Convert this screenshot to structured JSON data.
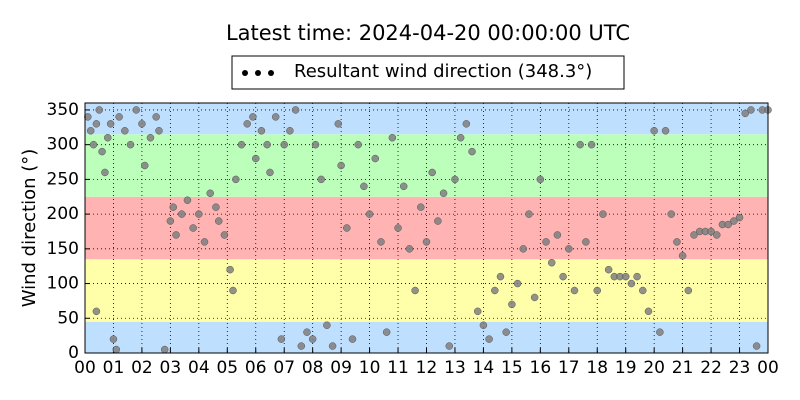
{
  "chart_data": {
    "type": "scatter",
    "title": "Latest time: 2024-04-20 00:00:00 UTC",
    "y_label": "Wind direction (°)",
    "xlim": [
      0,
      24
    ],
    "ylim": [
      0,
      360
    ],
    "xticks": [
      {
        "value": 0,
        "label": "00"
      },
      {
        "value": 1,
        "label": "01"
      },
      {
        "value": 2,
        "label": "02"
      },
      {
        "value": 3,
        "label": "03"
      },
      {
        "value": 4,
        "label": "04"
      },
      {
        "value": 5,
        "label": "05"
      },
      {
        "value": 6,
        "label": "06"
      },
      {
        "value": 7,
        "label": "07"
      },
      {
        "value": 8,
        "label": "08"
      },
      {
        "value": 9,
        "label": "09"
      },
      {
        "value": 10,
        "label": "10"
      },
      {
        "value": 11,
        "label": "11"
      },
      {
        "value": 12,
        "label": "12"
      },
      {
        "value": 13,
        "label": "13"
      },
      {
        "value": 14,
        "label": "14"
      },
      {
        "value": 15,
        "label": "15"
      },
      {
        "value": 16,
        "label": "16"
      },
      {
        "value": 17,
        "label": "17"
      },
      {
        "value": 18,
        "label": "18"
      },
      {
        "value": 19,
        "label": "19"
      },
      {
        "value": 20,
        "label": "20"
      },
      {
        "value": 21,
        "label": "21"
      },
      {
        "value": 22,
        "label": "22"
      },
      {
        "value": 23,
        "label": "23"
      },
      {
        "value": 24,
        "label": "00"
      }
    ],
    "yticks": [
      0,
      50,
      100,
      150,
      200,
      250,
      300,
      350
    ],
    "grid": true,
    "legend_position": "top",
    "legend_marker_color": "#000000",
    "bands": [
      {
        "from": 0,
        "to": 45,
        "color": "#bfdfff"
      },
      {
        "from": 45,
        "to": 135,
        "color": "#ffffaa"
      },
      {
        "from": 135,
        "to": 225,
        "color": "#ffb3b3"
      },
      {
        "from": 225,
        "to": 315,
        "color": "#bbffbb"
      },
      {
        "from": 315,
        "to": 360,
        "color": "#bfdfff"
      }
    ],
    "series": [
      {
        "name": "Resultant wind direction (348.3°)",
        "color": "#7f7f7f",
        "x": [
          0.1,
          0.2,
          0.3,
          0.4,
          0.5,
          0.6,
          0.7,
          0.8,
          0.9,
          1.0,
          1.1,
          0.4,
          1.2,
          1.4,
          1.6,
          1.8,
          2.0,
          2.1,
          2.3,
          2.5,
          2.6,
          2.8,
          3.0,
          3.1,
          3.2,
          3.4,
          3.6,
          3.8,
          4.0,
          4.2,
          4.4,
          4.6,
          4.7,
          4.9,
          5.1,
          5.2,
          5.3,
          5.5,
          5.7,
          5.9,
          6.0,
          6.2,
          6.4,
          6.5,
          6.7,
          6.9,
          7.0,
          7.2,
          7.4,
          7.6,
          7.8,
          8.0,
          8.1,
          8.3,
          8.5,
          8.7,
          8.9,
          9.0,
          9.2,
          9.4,
          9.6,
          9.8,
          10.0,
          10.2,
          10.4,
          10.6,
          10.8,
          11.0,
          11.2,
          11.4,
          11.6,
          11.8,
          12.0,
          12.2,
          12.4,
          12.6,
          12.8,
          13.0,
          13.2,
          13.4,
          13.6,
          13.8,
          14.0,
          14.2,
          14.4,
          14.6,
          14.8,
          15.0,
          15.2,
          15.4,
          15.6,
          15.8,
          16.0,
          16.2,
          16.4,
          16.6,
          16.8,
          17.0,
          17.2,
          17.4,
          17.6,
          17.8,
          18.0,
          18.2,
          18.4,
          18.6,
          18.8,
          19.0,
          19.2,
          19.4,
          19.6,
          19.8,
          20.0,
          20.2,
          20.4,
          20.6,
          20.8,
          21.0,
          21.2,
          21.4,
          21.6,
          21.8,
          22.0,
          22.2,
          22.4,
          22.6,
          22.8,
          23.0,
          23.2,
          23.4,
          23.6,
          23.8,
          24.0
        ],
        "values": [
          340,
          320,
          300,
          330,
          350,
          290,
          260,
          310,
          330,
          20,
          5,
          60,
          340,
          320,
          300,
          350,
          330,
          270,
          310,
          340,
          320,
          5,
          190,
          210,
          170,
          200,
          220,
          180,
          200,
          160,
          230,
          210,
          190,
          170,
          120,
          90,
          250,
          300,
          330,
          340,
          280,
          320,
          300,
          260,
          340,
          20,
          300,
          320,
          350,
          10,
          30,
          20,
          300,
          250,
          40,
          10,
          330,
          270,
          180,
          20,
          300,
          240,
          200,
          280,
          160,
          30,
          310,
          180,
          240,
          150,
          90,
          210,
          160,
          260,
          190,
          230,
          10,
          250,
          310,
          330,
          290,
          60,
          40,
          20,
          90,
          110,
          30,
          70,
          100,
          150,
          200,
          80,
          250,
          160,
          130,
          170,
          110,
          150,
          90,
          300,
          160,
          300,
          90,
          200,
          120,
          110,
          110,
          110,
          100,
          110,
          90,
          60,
          320,
          30,
          320,
          200,
          160,
          140,
          90,
          170,
          175,
          175,
          175,
          170,
          185,
          185,
          190,
          195,
          345,
          350,
          10,
          350,
          350
        ]
      }
    ]
  }
}
